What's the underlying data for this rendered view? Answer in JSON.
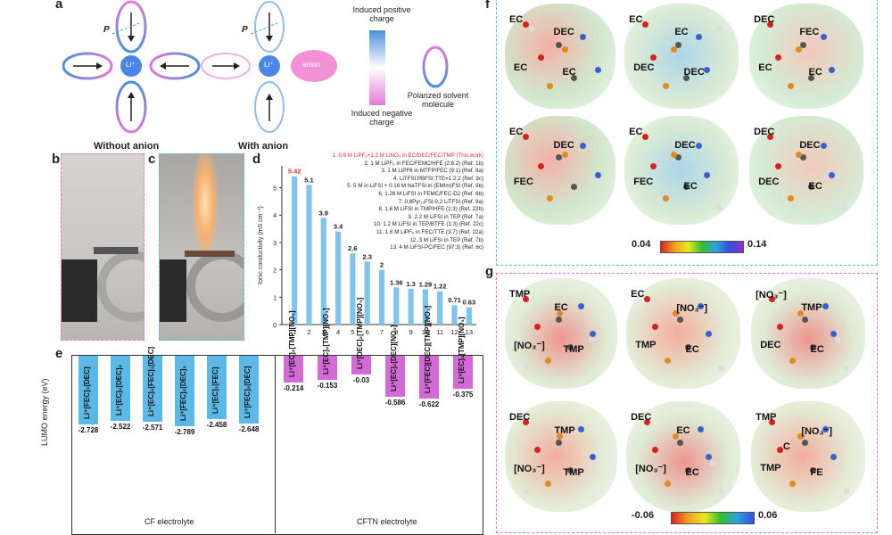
{
  "panel_a": {
    "label": "a",
    "p_symbol": "P",
    "li_label": "Li⁺",
    "anion_label": "anion",
    "without_caption": "Without anion",
    "with_caption": "With anion",
    "legend_pos": "Induced positive charge",
    "legend_neg": "Induced negative charge",
    "legend_polarized": "Polarized solvent molecule",
    "colors": {
      "positive": "#4a90d9",
      "negative": "#e27ad6",
      "li": "#4a86e8",
      "anion": "#f291d6"
    }
  },
  "panel_b": {
    "label": "b"
  },
  "panel_c": {
    "label": "c"
  },
  "panel_d": {
    "label": "d",
    "legend": [
      "1. 0.6 M LiPF₆+1.2 M LiNO₃ in EC/DEC/FEC/TMP (This work)",
      "2. 1 M LiPF₆ in FEC/FEMC/HFE (2:6:2) (Ref. 1b)",
      "3. 1 M LiPF6 in MTFP/FEC (9:1) (Ref. 8a)",
      "4. LiTFSI:PBFSI:TTE=1:2:2 (Ref. 9c)",
      "5. 5 M in LiFSI + 0.16 M NaTFSI in (EMIm)FSI (Ref. 9b)",
      "6. 1.28 M LiFSI in FEMC/FEC-D2 (Ref. 8b)",
      "7. 0.8Pyr₁₄FSI-0.2 LiTFSI (Ref. 9a)",
      "8. 1.6 M LiFSI in TMP/HFE (1:3) (Ref. 22b)",
      "9. 2.2 M LiFSI in TEP (Ref. 7a)",
      "10. 1.2 M LiFSI in TEP/BTFE (1:3) (Ref. 22c)",
      "11. 1.6 M LiPF₆ in FEC/TTE (3:7) (Ref. 22a)",
      "12. 3 M LiFSI in TEP (Ref. 7b)",
      "13. 4 M LiFSI-PC/FEC (97:3) (Ref. 6c)"
    ],
    "legend_highlight_color": "#e03030",
    "bar_color": "#7fc4ec"
  },
  "panel_e": {
    "label": "e",
    "ylabel": "LUMO energy (eV)",
    "group1_label": "CF electrolyte",
    "group2_label": "CFTN electrolyte",
    "bars": [
      {
        "label": "Li⁺[FEC]₃[DEC]",
        "value": "-2.728",
        "group": 1
      },
      {
        "label": "Li⁺[EC]₂[DEC]₂",
        "value": "-2.522",
        "group": 1
      },
      {
        "label": "Li⁺[EC]₂[FEC]₁[DEC]",
        "value": "-2.571",
        "group": 1
      },
      {
        "label": "Li⁺[FEC]₂[DEC]₂",
        "value": "-2.789",
        "group": 1
      },
      {
        "label": "Li⁺[EC]₁[FEC]",
        "value": "-2.458",
        "group": 1
      },
      {
        "label": "Li⁺[FEC]₂[DEC]",
        "value": "-2.648",
        "group": 1
      },
      {
        "label": "Li⁺[EC]₂[TMP][NO₃]",
        "value": "-0.214",
        "group": 2
      },
      {
        "label": "Li⁺[EC]₂[TMP][NO₃]",
        "value": "-0.153",
        "group": 2
      },
      {
        "label": "Li⁺[DEC]₂[TMP][NO₃]",
        "value": "-0.03",
        "group": 2
      },
      {
        "label": "Li⁺[EC]₂[DEC][NO₃]",
        "value": "-0.586",
        "group": 2
      },
      {
        "label": "Li⁺[FEC][DEC][TMP][NO₃]",
        "value": "-0.622",
        "group": 2
      },
      {
        "label": "Li⁺[EC]₂[TMP][NO₃]",
        "value": "-0.375",
        "group": 2
      }
    ],
    "colors": {
      "cf": "#5cb8e6",
      "cftn": "#d36ad6"
    }
  },
  "panel_f": {
    "label": "f",
    "scale_min": "0.04",
    "scale_max": "0.14",
    "molecules": [
      {
        "labels": [
          "EC",
          "DEC",
          "EC",
          "EC"
        ]
      },
      {
        "labels": [
          "EC",
          "EC",
          "DEC",
          "DEC"
        ]
      },
      {
        "labels": [
          "DEC",
          "FEC",
          "EC",
          "EC"
        ]
      },
      {
        "labels": [
          "EC",
          "DEC",
          "FEC"
        ]
      },
      {
        "labels": [
          "EC",
          "DEC",
          "FEC",
          "EC"
        ]
      },
      {
        "labels": [
          "DEC",
          "DEC",
          "DEC",
          "EC"
        ]
      }
    ]
  },
  "panel_g": {
    "label": "g",
    "scale_min": "-0.06",
    "scale_max": "0.06",
    "molecules": [
      {
        "labels": [
          "TMP",
          "EC",
          "[NO₃⁻]",
          "TMP"
        ]
      },
      {
        "labels": [
          "EC",
          "[NO₃⁻]",
          "TMP",
          "EC"
        ]
      },
      {
        "labels": [
          "[NO₃⁻]",
          "TMP",
          "DEC",
          "EC"
        ]
      },
      {
        "labels": [
          "DEC",
          "TMP",
          "[NO₃⁻]",
          "TMP"
        ]
      },
      {
        "labels": [
          "DEC",
          "EC",
          "[NO₃⁻]",
          "EC"
        ]
      },
      {
        "labels": [
          "TMP",
          "[NO₃⁻]",
          "TMP",
          "FE",
          "C"
        ]
      }
    ]
  },
  "chart_data": [
    {
      "type": "bar",
      "title": "",
      "ylabel": "Ionic conductivity (mS cm⁻¹)",
      "xlabel": "",
      "categories": [
        "1",
        "2",
        "3",
        "4",
        "5",
        "6",
        "7",
        "8",
        "9",
        "10",
        "11",
        "12",
        "13"
      ],
      "values": [
        5.42,
        5.1,
        3.9,
        3.4,
        2.6,
        2.3,
        2,
        1.36,
        1.3,
        1.29,
        1.22,
        0.71,
        0.63
      ],
      "value_labels": [
        "5.42",
        "5.1",
        "3.9",
        "3.4",
        "2.6",
        "2.3",
        "2",
        "1.36",
        "1.3",
        "1.29",
        "1.22",
        "0.71",
        "0.63"
      ],
      "yticks": [
        "0",
        "1",
        "2",
        "3",
        "4",
        "5"
      ],
      "ylim": [
        0,
        5.8
      ],
      "grid": false
    }
  ]
}
